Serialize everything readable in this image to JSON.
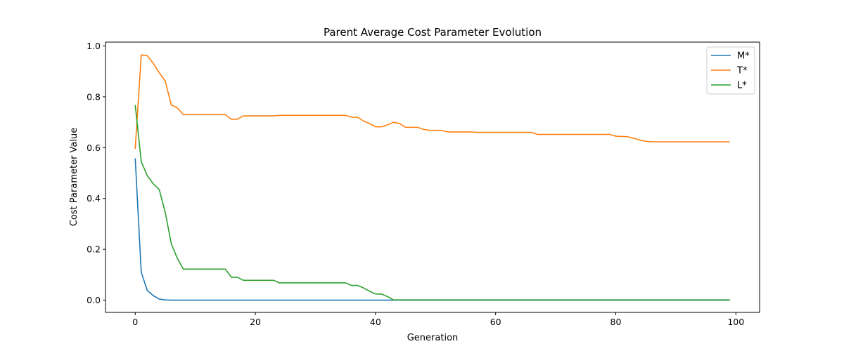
{
  "chart_data": {
    "type": "line",
    "title": "Parent Average Cost Parameter Evolution",
    "xlabel": "Generation",
    "ylabel": "Cost Parameter Value",
    "xlim": [
      -4.95,
      103.95
    ],
    "ylim": [
      -0.0483,
      1.0153
    ],
    "xticks": [
      0,
      20,
      40,
      60,
      80,
      100
    ],
    "yticks": [
      0.0,
      0.2,
      0.4,
      0.6,
      0.8,
      1.0
    ],
    "xtick_labels": [
      "0",
      "20",
      "40",
      "60",
      "80",
      "100"
    ],
    "ytick_labels": [
      "0.0",
      "0.2",
      "0.4",
      "0.6",
      "0.8",
      "1.0"
    ],
    "grid": false,
    "legend_position": "top-right",
    "series": [
      {
        "name": "M*",
        "color": "#1f77b4",
        "points": [
          [
            0,
            0.558
          ],
          [
            1,
            0.11
          ],
          [
            2,
            0.038
          ],
          [
            3,
            0.018
          ],
          [
            4,
            0.004
          ],
          [
            5,
            0.001
          ],
          [
            6,
            0.0
          ],
          [
            99,
            0.0
          ]
        ]
      },
      {
        "name": "T*",
        "color": "#ff7f0e",
        "points": [
          [
            0,
            0.595
          ],
          [
            1,
            0.965
          ],
          [
            2,
            0.962
          ],
          [
            3,
            0.932
          ],
          [
            4,
            0.895
          ],
          [
            5,
            0.862
          ],
          [
            6,
            0.768
          ],
          [
            7,
            0.757
          ],
          [
            8,
            0.73
          ],
          [
            15,
            0.73
          ],
          [
            16,
            0.712
          ],
          [
            17,
            0.712
          ],
          [
            18,
            0.725
          ],
          [
            23,
            0.725
          ],
          [
            24,
            0.727
          ],
          [
            35,
            0.727
          ],
          [
            36,
            0.72
          ],
          [
            37,
            0.72
          ],
          [
            38,
            0.705
          ],
          [
            39,
            0.695
          ],
          [
            40,
            0.682
          ],
          [
            41,
            0.682
          ],
          [
            42,
            0.69
          ],
          [
            43,
            0.7
          ],
          [
            44,
            0.695
          ],
          [
            45,
            0.68
          ],
          [
            47,
            0.68
          ],
          [
            48,
            0.672
          ],
          [
            49,
            0.668
          ],
          [
            51,
            0.668
          ],
          [
            52,
            0.662
          ],
          [
            56,
            0.662
          ],
          [
            57,
            0.66
          ],
          [
            66,
            0.66
          ],
          [
            67,
            0.652
          ],
          [
            79,
            0.652
          ],
          [
            80,
            0.645
          ],
          [
            82,
            0.643
          ],
          [
            83,
            0.637
          ],
          [
            84,
            0.63
          ],
          [
            85,
            0.625
          ],
          [
            86,
            0.623
          ],
          [
            99,
            0.623
          ]
        ]
      },
      {
        "name": "L*",
        "color": "#2ca02c",
        "points": [
          [
            0,
            0.768
          ],
          [
            1,
            0.545
          ],
          [
            2,
            0.49
          ],
          [
            3,
            0.458
          ],
          [
            4,
            0.435
          ],
          [
            5,
            0.345
          ],
          [
            6,
            0.222
          ],
          [
            7,
            0.165
          ],
          [
            8,
            0.122
          ],
          [
            15,
            0.122
          ],
          [
            16,
            0.09
          ],
          [
            17,
            0.09
          ],
          [
            18,
            0.078
          ],
          [
            23,
            0.078
          ],
          [
            24,
            0.068
          ],
          [
            35,
            0.068
          ],
          [
            36,
            0.058
          ],
          [
            37,
            0.058
          ],
          [
            38,
            0.048
          ],
          [
            39,
            0.035
          ],
          [
            40,
            0.024
          ],
          [
            41,
            0.024
          ],
          [
            42,
            0.014
          ],
          [
            43,
            0.001
          ],
          [
            99,
            0.001
          ]
        ]
      }
    ]
  }
}
